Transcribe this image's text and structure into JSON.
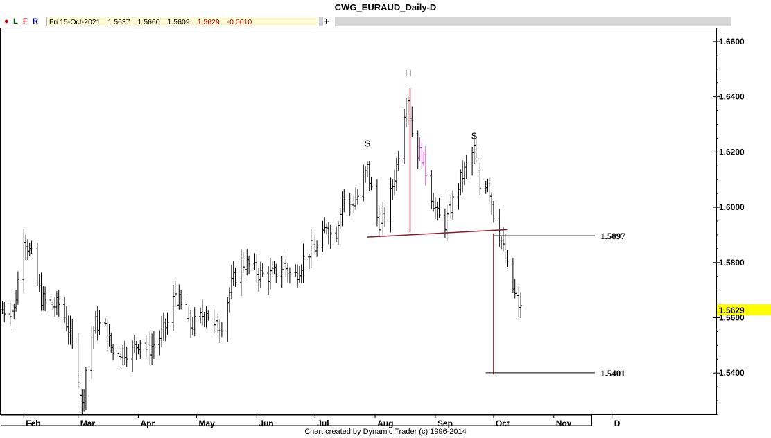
{
  "window": {
    "title": "CWG_EURAUD_Daily-D"
  },
  "toolbar": {
    "dot_symbol": "●",
    "letters": [
      "L",
      "F",
      "R"
    ],
    "ohlc": {
      "date": "Fri 15-Oct-2021",
      "open": "1.5637",
      "high": "1.5660",
      "low": "1.5609",
      "close": "1.5629",
      "change": "-0.0010"
    },
    "add_symbol": "+"
  },
  "footer": {
    "credit": "Chart created by Dynamic Trader  (c) 1996-2014"
  },
  "colors": {
    "bars": "#000000",
    "pattern_lines": "#8b1a2b",
    "price_tag": "#ffff00",
    "swing_bar": "#cc44cc"
  },
  "chart_data": {
    "type": "ohlc",
    "title": "CWG_EURAUD_Daily-D",
    "ylim": [
      1.525,
      1.665
    ],
    "x_tick_labels": [
      "Feb",
      "Mar",
      "Apr",
      "May",
      "Jun",
      "Jul",
      "Aug",
      "Sep",
      "Oct",
      "Nov",
      "D"
    ],
    "y_tick_labels": [
      "1.6600",
      "1.6400",
      "1.6200",
      "1.6000",
      "1.5800",
      "1.5600",
      "1.5400"
    ],
    "y_ticks": [
      1.66,
      1.64,
      1.62,
      1.6,
      1.58,
      1.56,
      1.54
    ],
    "last_price": {
      "label": "1.5629",
      "value": 1.5629
    },
    "levels": [
      {
        "label": "1.5897",
        "value": 1.5897
      },
      {
        "label": "1.5401",
        "value": 1.5401
      }
    ],
    "annotations": [
      {
        "text": "S",
        "date": "2021-07-28",
        "value": 1.622
      },
      {
        "text": "H",
        "date": "2021-08-18",
        "value": 1.6475
      },
      {
        "text": "S",
        "date": "2021-09-21",
        "value": 1.6247
      }
    ],
    "neckline": {
      "start": [
        "2021-07-28",
        1.5892
      ],
      "end": [
        "2021-10-08",
        1.5919
      ]
    },
    "head_drop": {
      "date": "2021-08-19",
      "from": 1.6432,
      "to": 1.591
    },
    "projection": {
      "date": "2021-10-01",
      "from": 1.5905,
      "to": 1.5395
    },
    "anchors": [
      [
        "2021-01-28",
        1.568
      ],
      [
        "2021-02-01",
        1.59
      ],
      [
        "2021-02-05",
        1.582
      ],
      [
        "2021-02-10",
        1.567
      ],
      [
        "2021-02-15",
        1.564
      ],
      [
        "2021-02-20",
        1.565
      ],
      [
        "2021-02-24",
        1.556
      ],
      [
        "2021-02-28",
        1.545
      ],
      [
        "2021-03-03",
        1.528
      ],
      [
        "2021-03-06",
        1.548
      ],
      [
        "2021-03-10",
        1.558
      ],
      [
        "2021-03-15",
        1.556
      ],
      [
        "2021-03-19",
        1.547
      ],
      [
        "2021-03-24",
        1.548
      ],
      [
        "2021-03-29",
        1.548
      ],
      [
        "2021-04-02",
        1.552
      ],
      [
        "2021-04-06",
        1.548
      ],
      [
        "2021-04-12",
        1.553
      ],
      [
        "2021-04-16",
        1.558
      ],
      [
        "2021-04-20",
        1.569
      ],
      [
        "2021-04-24",
        1.562
      ],
      [
        "2021-04-28",
        1.557
      ],
      [
        "2021-05-02",
        1.559
      ],
      [
        "2021-05-06",
        1.563
      ],
      [
        "2021-05-10",
        1.556
      ],
      [
        "2021-05-14",
        1.558
      ],
      [
        "2021-05-19",
        1.572
      ],
      [
        "2021-05-24",
        1.58
      ],
      [
        "2021-05-28",
        1.579
      ],
      [
        "2021-06-02",
        1.576
      ],
      [
        "2021-06-06",
        1.575
      ],
      [
        "2021-06-10",
        1.576
      ],
      [
        "2021-06-15",
        1.579
      ],
      [
        "2021-06-20",
        1.574
      ],
      [
        "2021-06-25",
        1.581
      ],
      [
        "2021-06-30",
        1.586
      ],
      [
        "2021-07-03",
        1.584
      ],
      [
        "2021-07-07",
        1.594
      ],
      [
        "2021-07-11",
        1.587
      ],
      [
        "2021-07-15",
        1.604
      ],
      [
        "2021-07-19",
        1.6
      ],
      [
        "2021-07-23",
        1.604
      ],
      [
        "2021-07-28",
        1.614
      ],
      [
        "2021-08-01",
        1.598
      ],
      [
        "2021-08-04",
        1.593
      ],
      [
        "2021-08-08",
        1.601
      ],
      [
        "2021-08-12",
        1.615
      ],
      [
        "2021-08-16",
        1.635
      ],
      [
        "2021-08-18",
        1.64
      ],
      [
        "2021-08-21",
        1.621
      ],
      [
        "2021-08-25",
        1.619
      ],
      [
        "2021-08-29",
        1.607
      ],
      [
        "2021-09-02",
        1.597
      ],
      [
        "2021-09-06",
        1.594
      ],
      [
        "2021-09-10",
        1.602
      ],
      [
        "2021-09-14",
        1.61
      ],
      [
        "2021-09-18",
        1.616
      ],
      [
        "2021-09-21",
        1.621
      ],
      [
        "2021-09-24",
        1.607
      ],
      [
        "2021-09-28",
        1.61
      ],
      [
        "2021-10-01",
        1.598
      ],
      [
        "2021-10-05",
        1.588
      ],
      [
        "2021-10-08",
        1.578
      ],
      [
        "2021-10-12",
        1.568
      ],
      [
        "2021-10-15",
        1.5629
      ]
    ]
  }
}
